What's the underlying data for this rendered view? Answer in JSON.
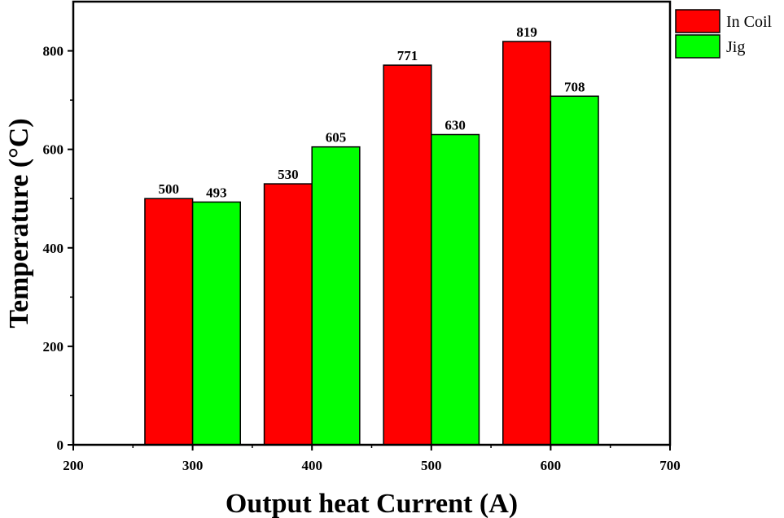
{
  "chart_data": {
    "type": "bar",
    "xlabel": "Output heat Current (A)",
    "ylabel": "Temperature (°C)",
    "xlim": [
      200,
      700
    ],
    "ylim": [
      0,
      900
    ],
    "x_ticks": [
      200,
      300,
      400,
      500,
      600,
      700
    ],
    "y_ticks": [
      0,
      200,
      400,
      600,
      800
    ],
    "categories": [
      300,
      400,
      500,
      600
    ],
    "series": [
      {
        "name": "In Coil",
        "color": "#ff0000",
        "values": [
          500,
          530,
          771,
          819
        ]
      },
      {
        "name": "Jig",
        "color": "#00ff00",
        "values": [
          493,
          605,
          630,
          708
        ]
      }
    ],
    "bar_width_data": 40,
    "grid": false,
    "legend_position": "top-right"
  }
}
